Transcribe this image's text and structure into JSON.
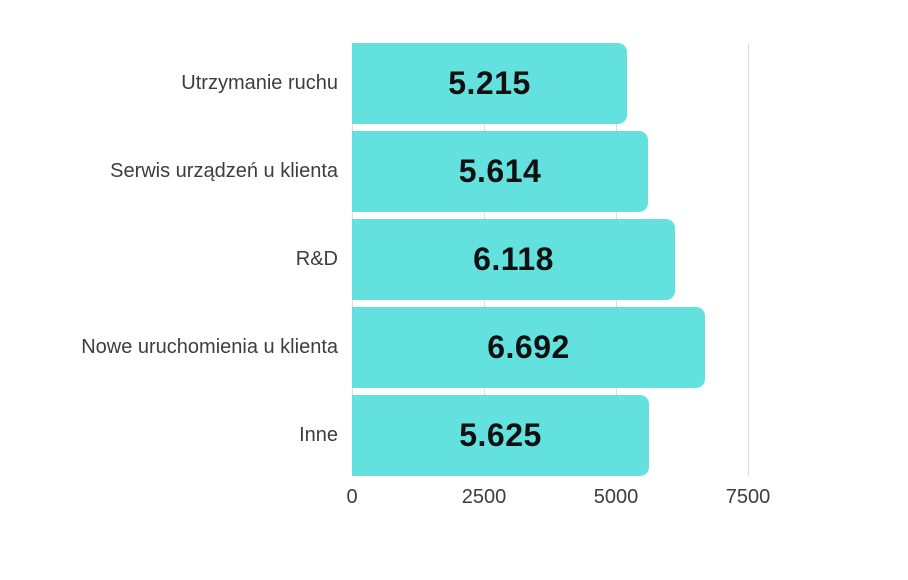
{
  "chart_data": {
    "type": "bar",
    "orientation": "horizontal",
    "title": "",
    "categories": [
      "Utrzymanie ruchu",
      "Serwis urządzeń u klienta",
      "R&D",
      "Nowe uruchomienia u klienta",
      "Inne"
    ],
    "values": [
      5215,
      5614,
      6118,
      6692,
      5625
    ],
    "value_labels": [
      "5.215",
      "5.614",
      "6.118",
      "6.692",
      "5.625"
    ],
    "x_ticks": [
      0,
      2500,
      5000,
      7500
    ],
    "x_tick_labels": [
      "0",
      "2500",
      "5000",
      "7500"
    ],
    "xlim": [
      0,
      7500
    ],
    "grid": true,
    "legend": "none",
    "colors": {
      "bar": "#62e1de",
      "gridline": "#dcdcdc",
      "category_label": "#3d3d3d",
      "axis_label": "#3d3d3d",
      "value_label": "#101010",
      "background": "#ffffff"
    }
  }
}
